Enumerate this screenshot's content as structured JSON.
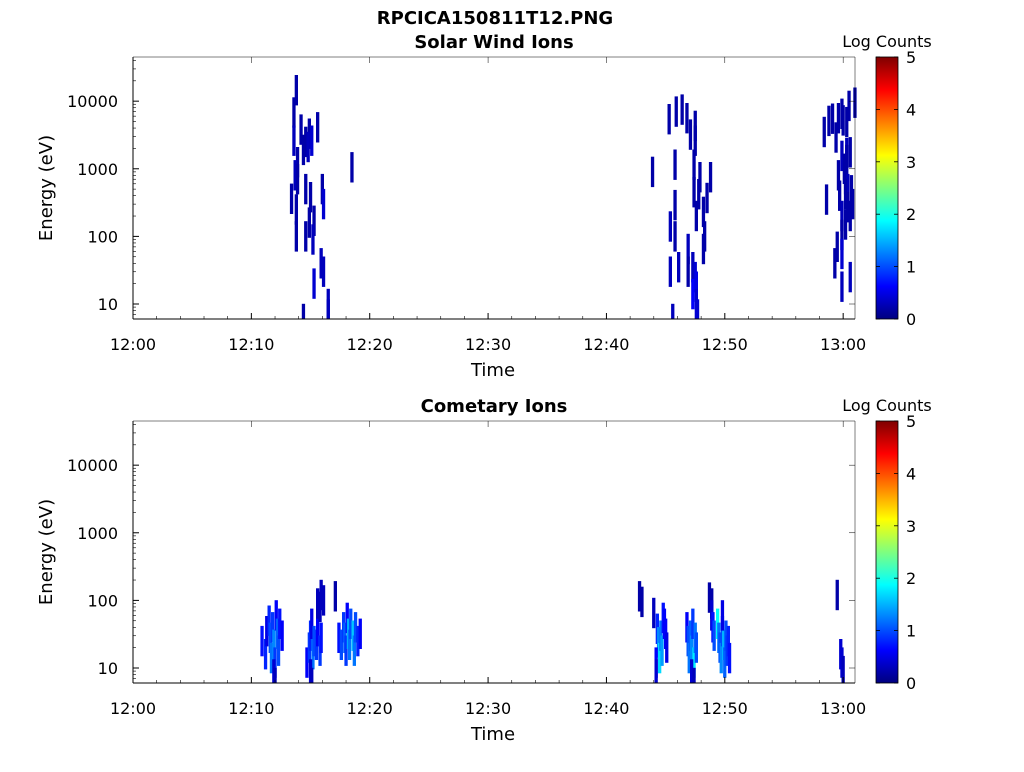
{
  "figure_title": "RPCICA150811T12.PNG",
  "colors": {
    "colormap": [
      "#00007f",
      "#0000ff",
      "#007fff",
      "#00ffff",
      "#7fff7f",
      "#ffff00",
      "#ff7f00",
      "#ff0000",
      "#7f0000"
    ]
  },
  "chart_data": [
    {
      "type": "heatmap",
      "title": "Solar Wind Ions",
      "xlabel": "Time",
      "ylabel": "Energy (eV)",
      "x_unit": "minutes after 12:00",
      "xlim": [
        0,
        61
      ],
      "ylim": [
        6,
        45000
      ],
      "y_scale": "log",
      "x_ticks": [
        {
          "value": 0,
          "label": "12:00"
        },
        {
          "value": 10,
          "label": "12:10"
        },
        {
          "value": 20,
          "label": "12:20"
        },
        {
          "value": 30,
          "label": "12:30"
        },
        {
          "value": 40,
          "label": "12:40"
        },
        {
          "value": 50,
          "label": "12:50"
        },
        {
          "value": 60,
          "label": "13:00"
        }
      ],
      "y_ticks": [
        {
          "value": 10,
          "label": "10"
        },
        {
          "value": 100,
          "label": "100"
        },
        {
          "value": 1000,
          "label": "1000"
        },
        {
          "value": 10000,
          "label": "10000"
        }
      ],
      "colorbar": {
        "label": "Log Counts",
        "range": [
          0,
          5
        ],
        "ticks": [
          "0",
          "1",
          "2",
          "3",
          "4",
          "5"
        ]
      },
      "cells": [
        [
          13.8,
          14500,
          0.2
        ],
        [
          13.6,
          6800,
          0.2
        ],
        [
          14.2,
          3800,
          0.2
        ],
        [
          13.6,
          2600,
          0.3
        ],
        [
          14.6,
          2500,
          0.2
        ],
        [
          14.9,
          3300,
          0.2
        ],
        [
          15.1,
          2600,
          0.4
        ],
        [
          15.6,
          4100,
          0.2
        ],
        [
          14.8,
          2100,
          0.3
        ],
        [
          14.4,
          1900,
          0.2
        ],
        [
          13.9,
          1250,
          0.2
        ],
        [
          13.7,
          800,
          0.3
        ],
        [
          13.9,
          700,
          0.2
        ],
        [
          18.5,
          1050,
          0.2
        ],
        [
          13.4,
          360,
          0.2
        ],
        [
          14.6,
          500,
          0.2
        ],
        [
          13.8,
          250,
          0.2
        ],
        [
          15.0,
          380,
          0.2
        ],
        [
          16.0,
          500,
          0.2
        ],
        [
          16.1,
          300,
          0.4
        ],
        [
          15.3,
          170,
          0.2
        ],
        [
          14.9,
          160,
          0.2
        ],
        [
          13.8,
          100,
          0.2
        ],
        [
          14.6,
          100,
          0.2
        ],
        [
          15.2,
          90,
          0.3
        ],
        [
          15.9,
          40,
          0.3
        ],
        [
          16.1,
          30,
          0.3
        ],
        [
          15.3,
          20,
          0.4
        ],
        [
          16.5,
          10,
          0.3
        ],
        [
          16.5,
          7,
          0.3
        ],
        [
          14.4,
          6,
          0.2
        ],
        [
          46.4,
          7500,
          0.2
        ],
        [
          45.9,
          7000,
          0.2
        ],
        [
          45.3,
          5400,
          0.2
        ],
        [
          46.8,
          5600,
          0.2
        ],
        [
          47.5,
          4300,
          0.2
        ],
        [
          47.1,
          3200,
          0.2
        ],
        [
          47.5,
          2600,
          0.2
        ],
        [
          45.8,
          1150,
          0.2
        ],
        [
          47.4,
          1150,
          0.2
        ],
        [
          43.9,
          900,
          0.2
        ],
        [
          47.9,
          750,
          0.2
        ],
        [
          48.8,
          750,
          0.2
        ],
        [
          47.4,
          450,
          0.2
        ],
        [
          47.8,
          420,
          0.2
        ],
        [
          48.5,
          370,
          0.2
        ],
        [
          45.8,
          290,
          0.2
        ],
        [
          48.2,
          230,
          0.2
        ],
        [
          47.6,
          200,
          0.2
        ],
        [
          45.4,
          140,
          0.3
        ],
        [
          45.8,
          100,
          0.2
        ],
        [
          48.3,
          100,
          0.2
        ],
        [
          46.9,
          65,
          0.3
        ],
        [
          48.2,
          65,
          0.2
        ],
        [
          45.4,
          30,
          0.3
        ],
        [
          46.1,
          35,
          0.3
        ],
        [
          47.3,
          35,
          0.3
        ],
        [
          46.9,
          30,
          0.2
        ],
        [
          47.5,
          25,
          0.4
        ],
        [
          47.6,
          18,
          0.5
        ],
        [
          47.3,
          14,
          0.6
        ],
        [
          47.6,
          10,
          0.4
        ],
        [
          47.7,
          7,
          0.4
        ],
        [
          45.6,
          6,
          0.3
        ],
        [
          58.4,
          3500,
          0.2
        ],
        [
          59.1,
          5500,
          0.2
        ],
        [
          58.8,
          5100,
          0.2
        ],
        [
          59.6,
          5600,
          0.2
        ],
        [
          60.0,
          5200,
          0.2
        ],
        [
          60.3,
          4900,
          0.2
        ],
        [
          59.9,
          6500,
          0.2
        ],
        [
          60.5,
          8500,
          0.2
        ],
        [
          61.0,
          9500,
          0.2
        ],
        [
          59.4,
          2900,
          0.2
        ],
        [
          60.3,
          1700,
          0.3
        ],
        [
          60.6,
          1750,
          0.2
        ],
        [
          59.9,
          1550,
          0.3
        ],
        [
          60.3,
          1350,
          0.2
        ],
        [
          60.1,
          1000,
          0.2
        ],
        [
          59.6,
          800,
          0.2
        ],
        [
          60.2,
          700,
          0.2
        ],
        [
          60.4,
          500,
          0.3
        ],
        [
          60.7,
          480,
          0.2
        ],
        [
          60.2,
          420,
          0.2
        ],
        [
          59.7,
          400,
          0.2
        ],
        [
          58.6,
          350,
          0.2
        ],
        [
          60.8,
          300,
          0.2
        ],
        [
          60.4,
          270,
          0.2
        ],
        [
          59.9,
          200,
          0.3
        ],
        [
          60.6,
          200,
          0.2
        ],
        [
          60.2,
          150,
          0.2
        ],
        [
          59.9,
          105,
          0.2
        ],
        [
          59.5,
          70,
          0.2
        ],
        [
          59.9,
          55,
          0.4
        ],
        [
          59.3,
          40,
          0.2
        ],
        [
          60.6,
          25,
          0.3
        ],
        [
          59.9,
          18,
          0.3
        ]
      ]
    },
    {
      "type": "heatmap",
      "title": "Cometary Ions",
      "xlabel": "Time",
      "ylabel": "Energy (eV)",
      "x_unit": "minutes after 12:00",
      "xlim": [
        0,
        61
      ],
      "ylim": [
        6,
        45000
      ],
      "y_scale": "log",
      "x_ticks": [
        {
          "value": 0,
          "label": "12:00"
        },
        {
          "value": 10,
          "label": "12:10"
        },
        {
          "value": 20,
          "label": "12:20"
        },
        {
          "value": 30,
          "label": "12:30"
        },
        {
          "value": 40,
          "label": "12:40"
        },
        {
          "value": 50,
          "label": "12:50"
        },
        {
          "value": 60,
          "label": "13:00"
        }
      ],
      "y_ticks": [
        {
          "value": 10,
          "label": "10"
        },
        {
          "value": 100,
          "label": "100"
        },
        {
          "value": 1000,
          "label": "1000"
        },
        {
          "value": 10000,
          "label": "10000"
        }
      ],
      "colorbar": {
        "label": "Log Counts",
        "range": [
          0,
          5
        ],
        "ticks": [
          "0",
          "1",
          "2",
          "3",
          "4",
          "5"
        ]
      },
      "cells": [
        [
          10.9,
          25,
          0.7
        ],
        [
          11.2,
          16,
          0.8
        ],
        [
          11.3,
          35,
          0.5
        ],
        [
          11.5,
          50,
          0.8
        ],
        [
          11.6,
          28,
          1.0
        ],
        [
          11.7,
          14,
          1.2
        ],
        [
          11.8,
          40,
          0.9
        ],
        [
          11.9,
          22,
          1.3
        ],
        [
          12.0,
          12,
          0.9
        ],
        [
          12.1,
          60,
          0.6
        ],
        [
          12.2,
          32,
          1.1
        ],
        [
          12.3,
          18,
          1.0
        ],
        [
          12.4,
          45,
          0.7
        ],
        [
          12.6,
          30,
          0.6
        ],
        [
          11.9,
          8,
          0.4
        ],
        [
          12.0,
          6,
          0.3
        ],
        [
          14.7,
          12,
          0.6
        ],
        [
          14.9,
          20,
          0.9
        ],
        [
          15.0,
          30,
          0.8
        ],
        [
          15.1,
          45,
          0.5
        ],
        [
          15.2,
          16,
          1.2
        ],
        [
          15.3,
          25,
          1.0
        ],
        [
          15.5,
          22,
          0.9
        ],
        [
          15.6,
          35,
          0.6
        ],
        [
          15.8,
          18,
          0.9
        ],
        [
          15.9,
          28,
          0.7
        ],
        [
          15.0,
          8,
          0.4
        ],
        [
          15.1,
          6,
          0.3
        ],
        [
          15.6,
          90,
          0.3
        ],
        [
          15.9,
          120,
          0.3
        ],
        [
          16.1,
          100,
          0.3
        ],
        [
          15.8,
          80,
          0.3
        ],
        [
          17.1,
          115,
          0.2
        ],
        [
          17.4,
          28,
          0.7
        ],
        [
          17.6,
          22,
          1.0
        ],
        [
          17.8,
          40,
          0.9
        ],
        [
          17.9,
          28,
          1.1
        ],
        [
          18.0,
          18,
          0.9
        ],
        [
          18.1,
          55,
          0.6
        ],
        [
          18.2,
          32,
          1.5
        ],
        [
          18.3,
          22,
          1.2
        ],
        [
          18.4,
          45,
          1.0
        ],
        [
          18.6,
          30,
          1.6
        ],
        [
          18.7,
          18,
          1.2
        ],
        [
          18.8,
          40,
          1.0
        ],
        [
          19.0,
          25,
          0.8
        ],
        [
          19.2,
          32,
          0.6
        ],
        [
          42.8,
          115,
          0.2
        ],
        [
          43.0,
          95,
          0.2
        ],
        [
          44.0,
          65,
          0.3
        ],
        [
          44.3,
          38,
          0.8
        ],
        [
          44.4,
          24,
          1.3
        ],
        [
          44.5,
          14,
          1.7
        ],
        [
          44.6,
          30,
          1.2
        ],
        [
          44.7,
          18,
          1.4
        ],
        [
          44.8,
          55,
          0.7
        ],
        [
          44.9,
          45,
          0.6
        ],
        [
          44.2,
          12,
          0.6
        ],
        [
          44.2,
          8,
          0.4
        ],
        [
          45.0,
          32,
          0.6
        ],
        [
          45.1,
          20,
          0.5
        ],
        [
          46.8,
          40,
          0.6
        ],
        [
          46.9,
          25,
          1.0
        ],
        [
          47.0,
          14,
          1.2
        ],
        [
          47.1,
          30,
          1.1
        ],
        [
          47.2,
          18,
          1.3
        ],
        [
          47.3,
          45,
          0.9
        ],
        [
          47.4,
          12,
          1.8
        ],
        [
          47.5,
          28,
          1.2
        ],
        [
          47.6,
          20,
          1.0
        ],
        [
          47.2,
          8,
          0.4
        ],
        [
          47.4,
          6,
          0.3
        ],
        [
          48.7,
          110,
          0.2
        ],
        [
          48.9,
          90,
          0.2
        ],
        [
          48.9,
          60,
          0.4
        ],
        [
          49.0,
          40,
          0.7
        ],
        [
          49.1,
          30,
          1.0
        ],
        [
          49.4,
          45,
          1.9
        ],
        [
          49.5,
          28,
          1.2
        ],
        [
          49.6,
          20,
          1.0
        ],
        [
          49.7,
          14,
          1.3
        ],
        [
          49.8,
          35,
          1.0
        ],
        [
          49.9,
          22,
          1.5
        ],
        [
          50.0,
          12,
          1.1
        ],
        [
          50.1,
          30,
          1.0
        ],
        [
          50.2,
          18,
          0.9
        ],
        [
          50.3,
          25,
          0.8
        ],
        [
          50.4,
          14,
          0.7
        ],
        [
          49.8,
          60,
          0.5
        ],
        [
          59.5,
          120,
          0.2
        ],
        [
          59.8,
          16,
          0.4
        ],
        [
          59.9,
          12,
          0.4
        ],
        [
          60.0,
          9,
          0.3
        ]
      ]
    }
  ]
}
